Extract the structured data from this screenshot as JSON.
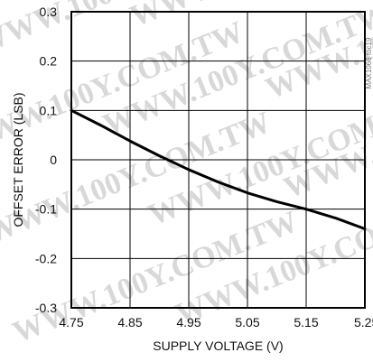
{
  "chart_data": {
    "type": "line",
    "title": "",
    "xlabel": "SUPPLY VOLTAGE (V)",
    "ylabel": "OFFSET ERROR (LSB)",
    "xlim": [
      4.75,
      5.25
    ],
    "ylim": [
      -0.3,
      0.3
    ],
    "x_ticks": [
      4.75,
      4.85,
      4.95,
      5.05,
      5.15,
      5.25
    ],
    "x_tick_labels": [
      "4.75",
      "4.85",
      "4.95",
      "5.05",
      "5.15",
      "5.25"
    ],
    "y_ticks": [
      0.3,
      0.2,
      0.1,
      0,
      -0.1,
      -0.2,
      -0.3
    ],
    "y_tick_labels": [
      "0.3",
      "0.2",
      "0.1",
      "0",
      "-0.1",
      "-0.2",
      "-0.3"
    ],
    "grid": true,
    "series": [
      {
        "x": [
          4.75,
          4.8,
          4.85,
          4.9,
          4.95,
          5.0,
          5.05,
          5.1,
          5.15,
          5.2,
          5.25
        ],
        "y": [
          0.1,
          0.07,
          0.038,
          0.008,
          -0.02,
          -0.045,
          -0.067,
          -0.085,
          -0.1,
          -0.118,
          -0.14
        ],
        "color": "#000000"
      }
    ]
  },
  "watermark_text": "WWW.100Y.COM.TW",
  "side_id": "MAX1066 toc19"
}
